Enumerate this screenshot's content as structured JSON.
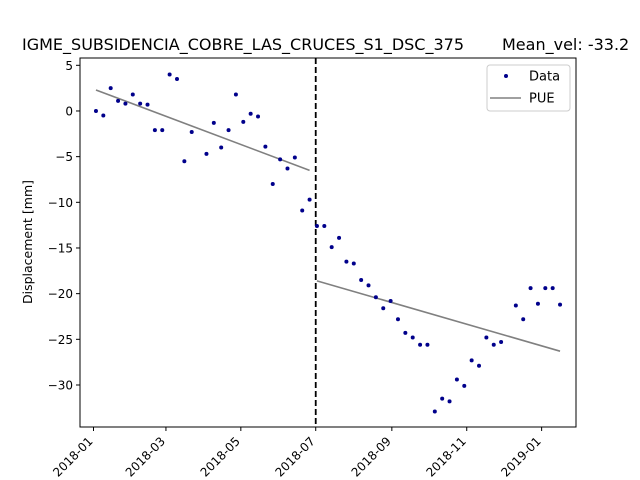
{
  "chart_data": {
    "type": "scatter",
    "title": "IGME_SUBSIDENCIA_COBRE_LAS_CRUCES_S1_DSC_375",
    "subtitle": "Mean_vel: -33.2",
    "xlabel": "",
    "ylabel": "Displacement [mm]",
    "x_ticks": [
      "2018-01",
      "2018-03",
      "2018-05",
      "2018-07",
      "2018-09",
      "2018-11",
      "2019-01"
    ],
    "y_ticks": [
      5,
      0,
      -5,
      -10,
      -15,
      -20,
      -25,
      -30
    ],
    "y_tick_labels": [
      "5",
      "0",
      "−5",
      "−10",
      "−15",
      "−20",
      "−25",
      "−30"
    ],
    "xlim": [
      "2017-12-21",
      "2019-01-29"
    ],
    "ylim": [
      -34.6,
      5.8
    ],
    "grid": false,
    "legend_position": "top-right",
    "legend": [
      "Data",
      "PUE"
    ],
    "series": [
      {
        "name": "Data",
        "marker": "dot",
        "color": "#00008b",
        "points": [
          [
            "2018-01-03",
            0.0
          ],
          [
            "2018-01-09",
            -0.5
          ],
          [
            "2018-01-15",
            2.5
          ],
          [
            "2018-01-21",
            1.1
          ],
          [
            "2018-01-27",
            0.8
          ],
          [
            "2018-02-02",
            1.8
          ],
          [
            "2018-02-08",
            0.8
          ],
          [
            "2018-02-14",
            0.7
          ],
          [
            "2018-02-20",
            -2.1
          ],
          [
            "2018-02-26",
            -2.1
          ],
          [
            "2018-03-04",
            4.0
          ],
          [
            "2018-03-10",
            3.5
          ],
          [
            "2018-03-16",
            -5.5
          ],
          [
            "2018-03-22",
            -2.3
          ],
          [
            "2018-04-03",
            -4.7
          ],
          [
            "2018-04-09",
            -1.3
          ],
          [
            "2018-04-15",
            -4.0
          ],
          [
            "2018-04-21",
            -2.1
          ],
          [
            "2018-04-27",
            1.8
          ],
          [
            "2018-05-03",
            -1.2
          ],
          [
            "2018-05-09",
            -0.3
          ],
          [
            "2018-05-15",
            -0.6
          ],
          [
            "2018-05-21",
            -3.9
          ],
          [
            "2018-05-27",
            -8.0
          ],
          [
            "2018-06-02",
            -5.3
          ],
          [
            "2018-06-08",
            -6.3
          ],
          [
            "2018-06-14",
            -5.1
          ],
          [
            "2018-06-20",
            -10.9
          ],
          [
            "2018-06-26",
            -9.7
          ],
          [
            "2018-07-02",
            -12.6
          ],
          [
            "2018-07-08",
            -12.6
          ],
          [
            "2018-07-14",
            -14.9
          ],
          [
            "2018-07-20",
            -13.9
          ],
          [
            "2018-07-26",
            -16.5
          ],
          [
            "2018-08-01",
            -16.7
          ],
          [
            "2018-08-07",
            -18.5
          ],
          [
            "2018-08-13",
            -19.1
          ],
          [
            "2018-08-19",
            -20.4
          ],
          [
            "2018-08-25",
            -21.6
          ],
          [
            "2018-08-31",
            -20.8
          ],
          [
            "2018-09-06",
            -22.8
          ],
          [
            "2018-09-12",
            -24.3
          ],
          [
            "2018-09-18",
            -24.8
          ],
          [
            "2018-09-24",
            -25.6
          ],
          [
            "2018-09-30",
            -25.6
          ],
          [
            "2018-10-06",
            -32.9
          ],
          [
            "2018-10-12",
            -31.5
          ],
          [
            "2018-10-18",
            -31.8
          ],
          [
            "2018-10-24",
            -29.4
          ],
          [
            "2018-10-30",
            -30.1
          ],
          [
            "2018-11-05",
            -27.3
          ],
          [
            "2018-11-11",
            -27.9
          ],
          [
            "2018-11-17",
            -24.8
          ],
          [
            "2018-11-23",
            -25.6
          ],
          [
            "2018-11-29",
            -25.3
          ],
          [
            "2018-12-11",
            -21.3
          ],
          [
            "2018-12-17",
            -22.8
          ],
          [
            "2018-12-23",
            -19.4
          ],
          [
            "2018-12-29",
            -21.1
          ],
          [
            "2019-01-04",
            -19.4
          ],
          [
            "2019-01-10",
            -19.4
          ],
          [
            "2019-01-16",
            -21.2
          ]
        ]
      },
      {
        "name": "PUE",
        "type": "line",
        "color": "#808080",
        "segments": [
          [
            [
              "2018-01-03",
              2.3
            ],
            [
              "2018-06-26",
              -6.5
            ]
          ],
          [
            "2018-07-02",
            -18.6
          ],
          [
            "2019-01-16",
            -26.3
          ]
        ]
      }
    ],
    "annotations": [
      {
        "type": "vertical_dashed_line",
        "x": "2018-07-01",
        "color": "#000000"
      }
    ]
  }
}
